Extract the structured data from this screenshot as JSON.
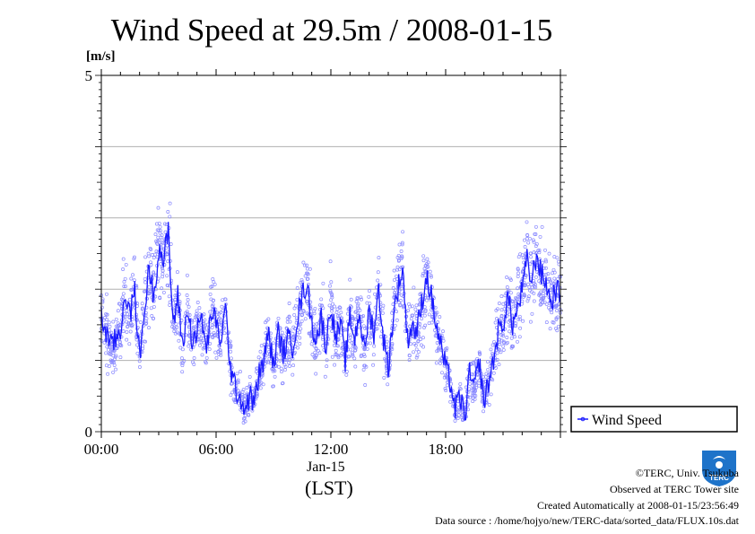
{
  "chart_data": {
    "type": "scatter",
    "title": "Wind Speed at 29.5m / 2008-01-15",
    "ylabel": "[m/s]",
    "xlabel": "(LST)",
    "date_label": "Jan-15",
    "ylim": [
      0,
      5
    ],
    "xlim_hours": [
      0,
      24
    ],
    "y_ticks": [
      "0",
      "5"
    ],
    "y_gridlines": [
      1,
      2,
      3,
      4
    ],
    "x_ticks": [
      {
        "hour": 0,
        "label": "00:00"
      },
      {
        "hour": 6,
        "label": "06:00"
      },
      {
        "hour": 12,
        "label": "12:00"
      },
      {
        "hour": 18,
        "label": "18:00"
      }
    ],
    "legend": {
      "label": "Wind Speed",
      "position": "right"
    },
    "series": [
      {
        "name": "Wind Speed",
        "sample_interval": "10s",
        "color": "#1a1aff",
        "point_color": "#8a8aff",
        "hours": [
          0,
          0.5,
          1,
          1.25,
          1.5,
          1.75,
          2,
          2.25,
          2.5,
          2.75,
          3,
          3.25,
          3.5,
          3.75,
          4,
          4.25,
          4.5,
          4.75,
          5,
          5.25,
          5.5,
          5.75,
          6,
          6.25,
          6.5,
          6.75,
          7,
          7.25,
          7.5,
          7.75,
          8,
          8.25,
          8.5,
          8.75,
          9,
          9.25,
          9.5,
          9.75,
          10,
          10.25,
          10.5,
          10.75,
          11,
          11.25,
          11.5,
          11.75,
          12,
          12.25,
          12.5,
          12.75,
          13,
          13.25,
          13.5,
          13.75,
          14,
          14.25,
          14.5,
          14.75,
          15,
          15.25,
          15.5,
          15.75,
          16,
          16.25,
          16.5,
          16.75,
          17,
          17.25,
          17.5,
          17.75,
          18,
          18.25,
          18.5,
          18.75,
          19,
          19.25,
          19.5,
          19.75,
          20,
          20.25,
          20.5,
          20.75,
          21,
          21.25,
          21.5,
          21.75,
          22,
          22.25,
          22.5,
          22.75,
          23,
          23.25,
          23.5,
          23.75,
          24
        ],
        "values": [
          1.6,
          1.2,
          1.4,
          2.0,
          1.6,
          2.0,
          1.0,
          1.7,
          2.3,
          1.9,
          2.6,
          2.4,
          2.8,
          1.5,
          1.9,
          1.2,
          1.7,
          1.3,
          1.4,
          1.6,
          1.1,
          1.7,
          1.5,
          1.3,
          1.7,
          0.9,
          0.6,
          0.5,
          0.3,
          0.5,
          0.4,
          0.8,
          1.0,
          1.4,
          0.9,
          1.4,
          1.1,
          1.3,
          1.2,
          1.6,
          1.9,
          2.1,
          1.5,
          1.3,
          1.6,
          1.2,
          1.8,
          1.3,
          1.5,
          1.0,
          1.6,
          1.3,
          1.7,
          1.1,
          1.7,
          1.4,
          2.0,
          1.3,
          0.9,
          1.6,
          2.0,
          2.3,
          1.3,
          1.5,
          1.4,
          1.8,
          2.2,
          1.9,
          1.5,
          1.2,
          0.9,
          0.7,
          0.3,
          0.5,
          0.2,
          0.8,
          0.6,
          1.0,
          0.4,
          0.7,
          1.0,
          1.4,
          1.5,
          1.9,
          1.5,
          1.7,
          2.0,
          2.4,
          2.1,
          2.5,
          2.2,
          2.1,
          1.8,
          2.0,
          1.9
        ]
      }
    ]
  },
  "footer": {
    "copyright": "©TERC, Univ. Tsukuba",
    "observed": "Observed at TERC Tower site",
    "created": "Created Automatically at 2008-01-15/23:56:49",
    "source": "Data source : /home/hojyo/new/TERC-data/sorted_data/FLUX.10s.dat"
  },
  "logo": {
    "text": "TERC"
  }
}
